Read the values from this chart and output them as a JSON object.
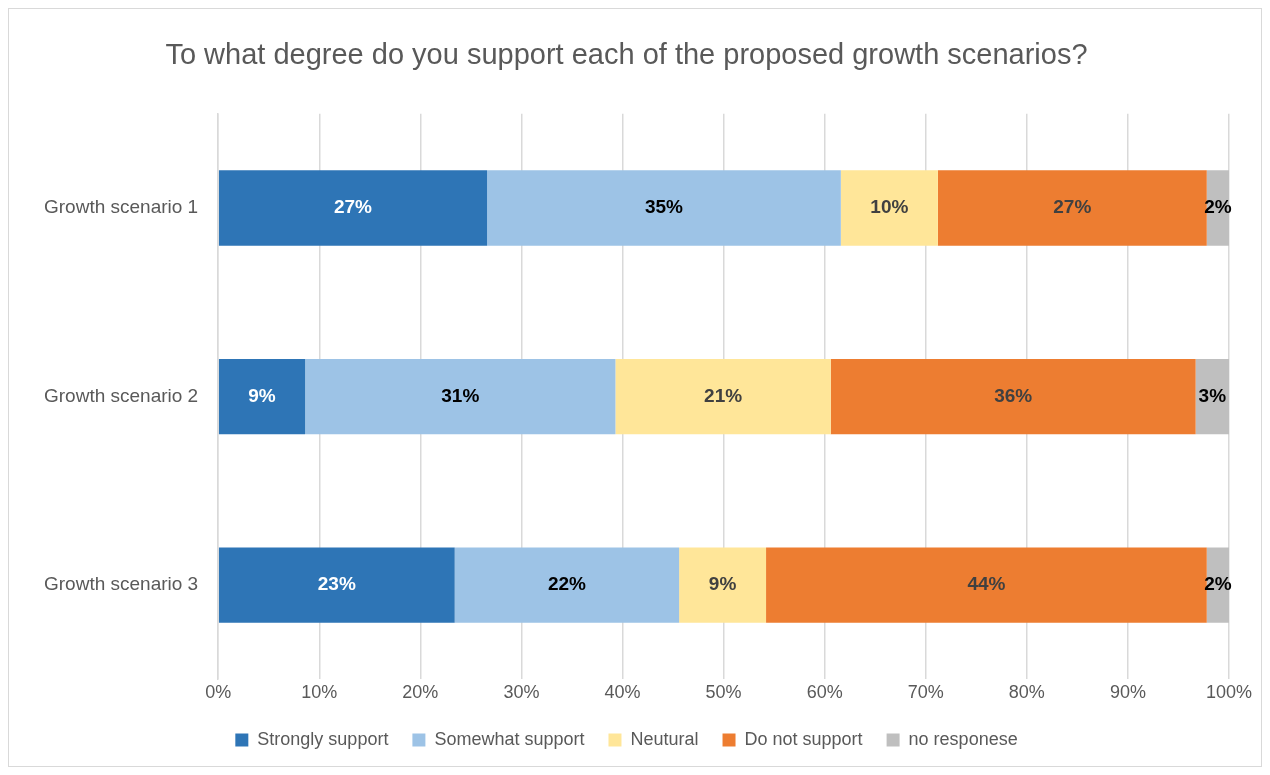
{
  "chart_data": {
    "type": "bar",
    "orientation": "horizontal",
    "stacked": true,
    "title": "To what degree do you support each of the proposed growth scenarios?",
    "categories": [
      "Growth scenario 1",
      "Growth scenario 2",
      "Growth scenario 3"
    ],
    "series": [
      {
        "name": "Strongly support",
        "color": "#2e75b6",
        "values": [
          26.6,
          8.6,
          23.4
        ],
        "value_labels": [
          "27%",
          "9%",
          "23%"
        ]
      },
      {
        "name": "Somewhat support",
        "color": "#9dc3e6",
        "values": [
          35.0,
          30.7,
          22.2
        ],
        "value_labels": [
          "35%",
          "31%",
          "22%"
        ]
      },
      {
        "name": "Neutural",
        "color": "#ffe699",
        "values": [
          9.6,
          21.3,
          8.6
        ],
        "value_labels": [
          "10%",
          "21%",
          "9%"
        ]
      },
      {
        "name": "Do not support",
        "color": "#ed7d31",
        "values": [
          26.6,
          36.1,
          43.6
        ],
        "value_labels": [
          "27%",
          "36%",
          "44%"
        ]
      },
      {
        "name": "no responese",
        "color": "#bfbfbf",
        "values": [
          2.2,
          3.3,
          2.2
        ],
        "value_labels": [
          "2%",
          "3%",
          "2%"
        ]
      }
    ],
    "xlim": [
      0,
      100
    ],
    "xticks": [
      {
        "value": 0,
        "label": "0%"
      },
      {
        "value": 10,
        "label": "10%"
      },
      {
        "value": 20,
        "label": "20%"
      },
      {
        "value": 30,
        "label": "30%"
      },
      {
        "value": 40,
        "label": "40%"
      },
      {
        "value": 50,
        "label": "50%"
      },
      {
        "value": 60,
        "label": "60%"
      },
      {
        "value": 70,
        "label": "70%"
      },
      {
        "value": 80,
        "label": "80%"
      },
      {
        "value": 90,
        "label": "90%"
      },
      {
        "value": 100,
        "label": "100%"
      }
    ],
    "grid": "x",
    "legend": "bottom"
  }
}
